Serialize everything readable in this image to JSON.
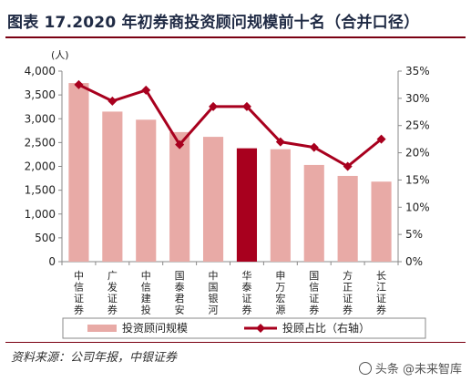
{
  "title": "图表 17.2020 年初券商投资顾问规模前十名（合并口径）",
  "source": "资料来源：公司年报，中银证券",
  "watermark": "头条 @未来智库",
  "chart_data": {
    "type": "bar",
    "categories": [
      "中信证券",
      "广发证券",
      "中信建投",
      "国泰君安",
      "中国银河",
      "华泰证券",
      "申万宏源",
      "国信证券",
      "方正证券",
      "长江证券"
    ],
    "unit_label": "(人)",
    "series": [
      {
        "name": "投资顾问规模",
        "type": "bar",
        "axis": "left",
        "values": [
          3750,
          3150,
          2980,
          2720,
          2620,
          2380,
          2360,
          2030,
          1800,
          1680
        ],
        "color": "#e8aaa6",
        "highlight_index": 5,
        "highlight_color": "#a8001e"
      },
      {
        "name": "投顾占比（右轴）",
        "type": "line",
        "axis": "right",
        "values": [
          32.5,
          29.5,
          31.5,
          21.5,
          28.5,
          28.5,
          22.0,
          21.0,
          17.5,
          22.5
        ],
        "color": "#a8001e"
      }
    ],
    "left_axis": {
      "min": 0,
      "max": 4000,
      "step": 500,
      "ticks": [
        "0",
        "500",
        "1,000",
        "1,500",
        "2,000",
        "2,500",
        "3,000",
        "3,500",
        "4,000"
      ]
    },
    "right_axis": {
      "min": 0,
      "max": 35,
      "step": 5,
      "ticks": [
        "0%",
        "5%",
        "10%",
        "15%",
        "20%",
        "25%",
        "30%",
        "35%"
      ]
    },
    "legend_position": "bottom",
    "grid": false
  }
}
